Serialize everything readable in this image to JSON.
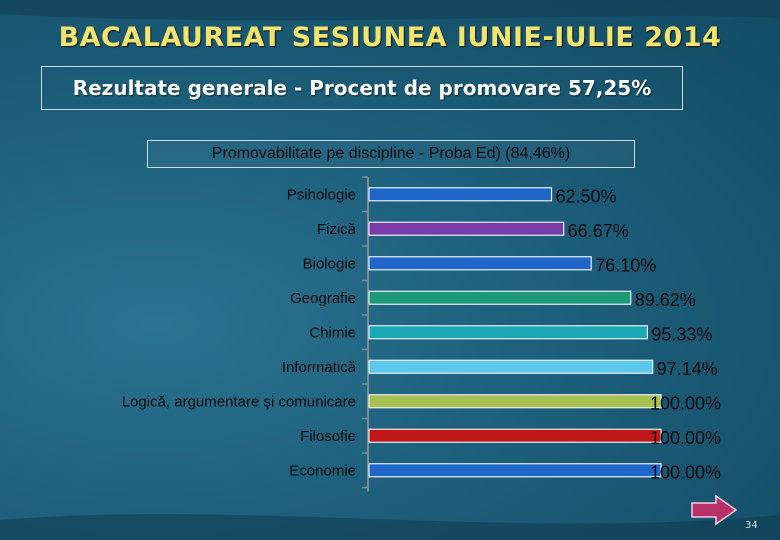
{
  "slide": {
    "title": "BACALAUREAT SESIUNEA IUNIE-IULIE 2014",
    "subtitle": "Rezultate generale - Procent de promovare 57,25%",
    "page_number": "34",
    "next_icon": "arrow-right-icon"
  },
  "chart_data": {
    "type": "bar",
    "orientation": "horizontal",
    "title": "Promovabilitate pe discipline - Proba Ed)  (84,46%)",
    "categories": [
      "Psihologie",
      "Fizică",
      "Biologie",
      "Geografie",
      "Chimie",
      "Informatică",
      "Logică, argumentare şi comunicare",
      "Filosofie",
      "Economie"
    ],
    "values": [
      62.5,
      66.67,
      76.1,
      89.62,
      95.33,
      97.14,
      100,
      100,
      100
    ],
    "value_labels": [
      "62.50%",
      "66.67%",
      "76.10%",
      "89.62%",
      "95.33%",
      "97.14%",
      "100.00%",
      "100.00%",
      "100.00%"
    ],
    "colors": [
      "#1e66c8",
      "#7a3aa8",
      "#1e66c8",
      "#1e9a78",
      "#1aa8b4",
      "#5cc8ec",
      "#a8c050",
      "#c01818",
      "#1e66c8"
    ],
    "xlim": [
      0,
      100
    ],
    "grid": false,
    "legend": "none"
  }
}
